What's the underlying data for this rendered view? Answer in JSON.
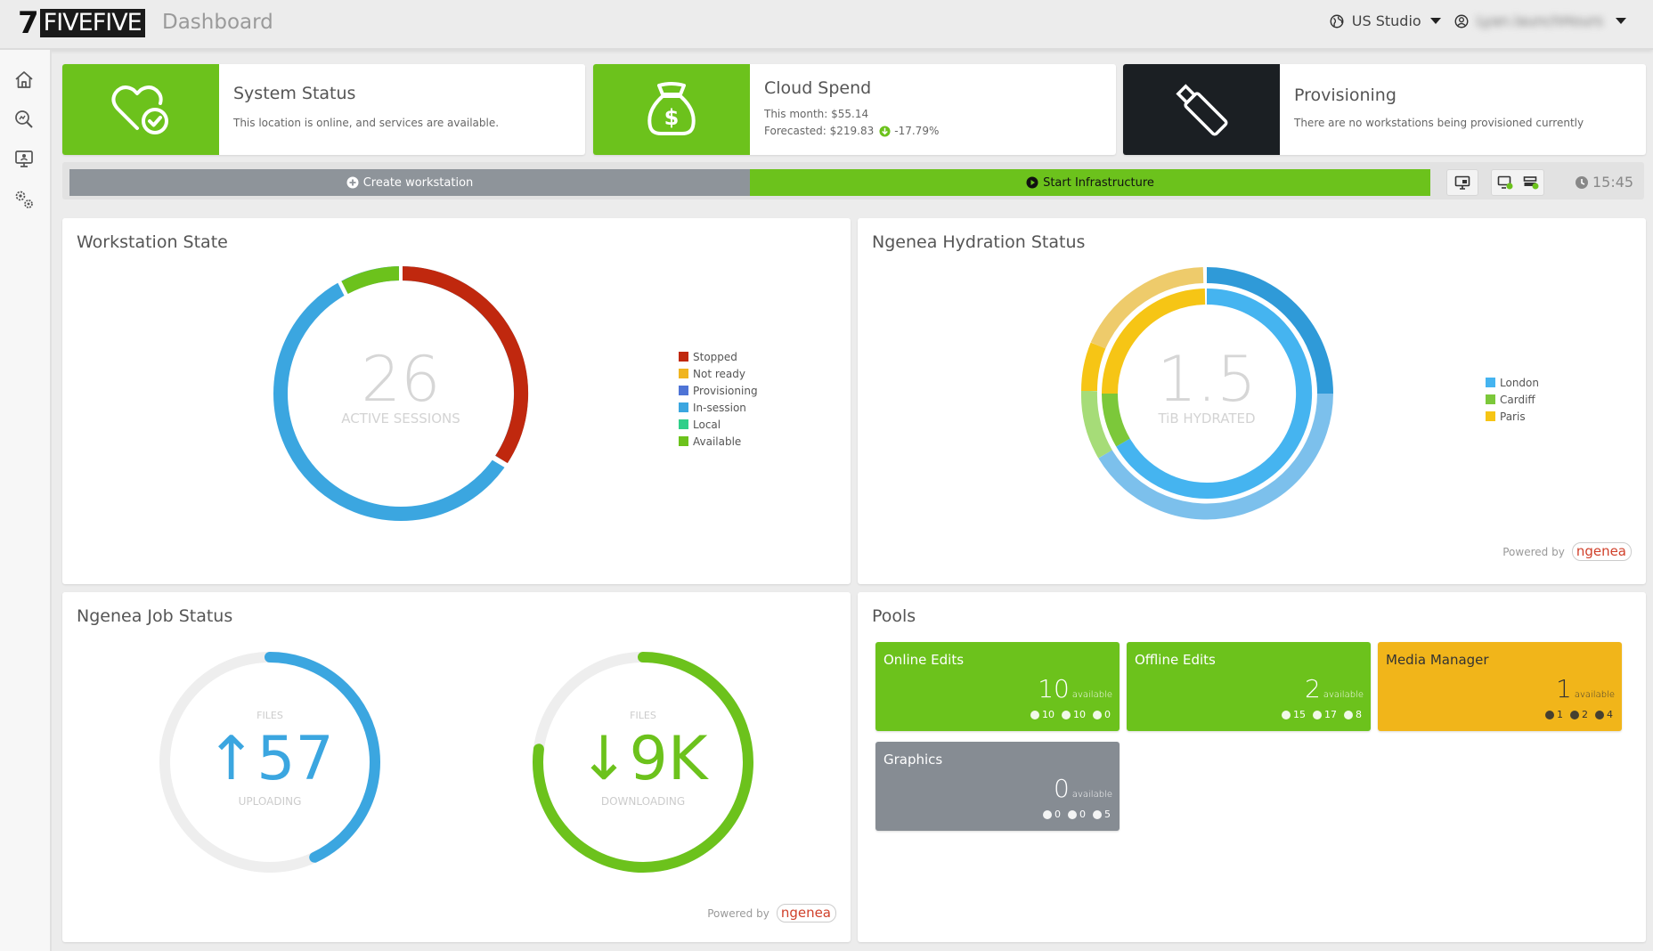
{
  "header": {
    "logo_seven": "7",
    "logo_text": "FIVEFIVE",
    "page_title": "Dashboard",
    "location": "US Studio",
    "username": "Lyan.launchHours"
  },
  "sidebar": {
    "items": [
      {
        "icon": "home-icon"
      },
      {
        "icon": "search-analytics-icon"
      },
      {
        "icon": "workstation-icon"
      },
      {
        "icon": "settings-gears-icon"
      }
    ]
  },
  "cards": {
    "system_status": {
      "title": "System Status",
      "subtitle": "This location is online, and services are available.",
      "color": "#6cc21c"
    },
    "cloud_spend": {
      "title": "Cloud Spend",
      "this_month": "This month: $55.14",
      "forecasted": "Forecasted: $219.83",
      "change": "-17.79%",
      "color": "#6cc21c"
    },
    "provisioning": {
      "title": "Provisioning",
      "subtitle": "There are no workstations being provisioned currently",
      "color": "#1b1f23"
    }
  },
  "actions": {
    "create_label": "Create workstation",
    "start_label": "Start Infrastructure",
    "time": "15:45"
  },
  "workstation_state": {
    "title": "Workstation State",
    "value": "26",
    "caption": "ACTIVE SESSIONS",
    "legend": [
      {
        "label": "Stopped",
        "color": "#c0280e"
      },
      {
        "label": "Not ready",
        "color": "#f0b520"
      },
      {
        "label": "Provisioning",
        "color": "#4e74d6"
      },
      {
        "label": "In-session",
        "color": "#3ba6e0"
      },
      {
        "label": "Local",
        "color": "#2fcf8a"
      },
      {
        "label": "Available",
        "color": "#6cc21c"
      }
    ]
  },
  "hydration": {
    "title": "Ngenea Hydration Status",
    "value": "1.5",
    "caption": "TiB HYDRATED",
    "legend": [
      {
        "label": "London",
        "color": "#45b4f0"
      },
      {
        "label": "Cardiff",
        "color": "#7cc83a"
      },
      {
        "label": "Paris",
        "color": "#f6c515"
      }
    ],
    "powered_by": "Powered by",
    "brand": "ngenea"
  },
  "job_status": {
    "title": "Ngenea Job Status",
    "upload": {
      "top": "FILES",
      "value": "↑57",
      "caption": "UPLOADING",
      "progress": 0.43
    },
    "download": {
      "top": "FILES",
      "value": "↓9K",
      "caption": "DOWNLOADING",
      "progress": 0.77
    },
    "powered_by": "Powered by",
    "brand": "ngenea"
  },
  "pools": {
    "title": "Pools",
    "items": [
      {
        "name": "Online Edits",
        "count": "10",
        "unit": "available",
        "a": "10",
        "b": "10",
        "c": "0",
        "color": "#6cc21c"
      },
      {
        "name": "Offline Edits",
        "count": "2",
        "unit": "available",
        "a": "15",
        "b": "17",
        "c": "8",
        "color": "#6cc21c"
      },
      {
        "name": "Media Manager",
        "count": "1",
        "unit": "available",
        "a": "1",
        "b": "2",
        "c": "4",
        "color": "#f1b51a"
      },
      {
        "name": "Graphics",
        "count": "0",
        "unit": "available",
        "a": "0",
        "b": "0",
        "c": "5",
        "color": "#868c93"
      }
    ]
  }
}
